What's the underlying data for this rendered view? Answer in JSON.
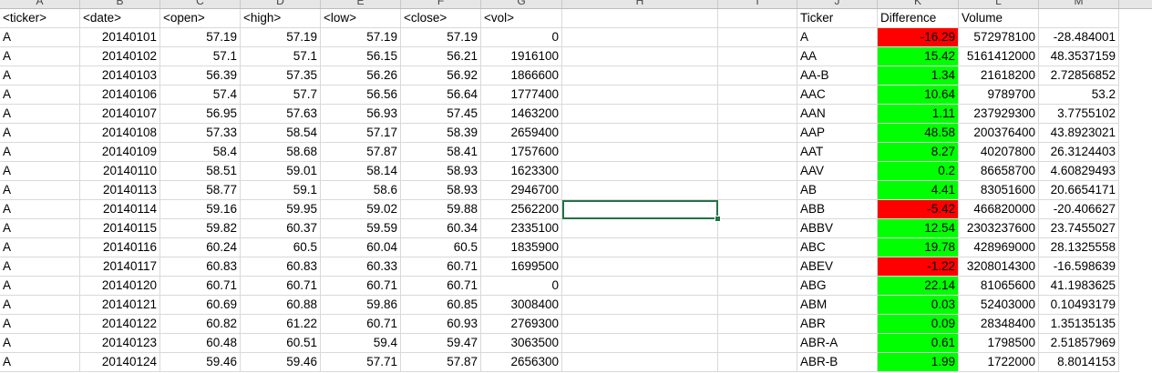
{
  "column_letters": [
    "A",
    "B",
    "C",
    "D",
    "E",
    "F",
    "G",
    "H",
    "I",
    "J",
    "K",
    "L",
    "M"
  ],
  "headers": {
    "A": "<ticker>",
    "B": "<date>",
    "C": "<open>",
    "D": "<high>",
    "E": "<low>",
    "F": "<close>",
    "G": "<vol>",
    "J": "Ticker",
    "K": "Difference",
    "L": "Volume"
  },
  "left_rows": [
    [
      "A",
      "20140101",
      "57.19",
      "57.19",
      "57.19",
      "57.19",
      "0"
    ],
    [
      "A",
      "20140102",
      "57.1",
      "57.1",
      "56.15",
      "56.21",
      "1916100"
    ],
    [
      "A",
      "20140103",
      "56.39",
      "57.35",
      "56.26",
      "56.92",
      "1866600"
    ],
    [
      "A",
      "20140106",
      "57.4",
      "57.7",
      "56.56",
      "56.64",
      "1777400"
    ],
    [
      "A",
      "20140107",
      "56.95",
      "57.63",
      "56.93",
      "57.45",
      "1463200"
    ],
    [
      "A",
      "20140108",
      "57.33",
      "58.54",
      "57.17",
      "58.39",
      "2659400"
    ],
    [
      "A",
      "20140109",
      "58.4",
      "58.68",
      "57.87",
      "58.41",
      "1757600"
    ],
    [
      "A",
      "20140110",
      "58.51",
      "59.01",
      "58.14",
      "58.93",
      "1623300"
    ],
    [
      "A",
      "20140113",
      "58.77",
      "59.1",
      "58.6",
      "58.93",
      "2946700"
    ],
    [
      "A",
      "20140114",
      "59.16",
      "59.95",
      "59.02",
      "59.88",
      "2562200"
    ],
    [
      "A",
      "20140115",
      "59.82",
      "60.37",
      "59.59",
      "60.34",
      "2335100"
    ],
    [
      "A",
      "20140116",
      "60.24",
      "60.5",
      "60.04",
      "60.5",
      "1835900"
    ],
    [
      "A",
      "20140117",
      "60.83",
      "60.83",
      "60.33",
      "60.71",
      "1699500"
    ],
    [
      "A",
      "20140120",
      "60.71",
      "60.71",
      "60.71",
      "60.71",
      "0"
    ],
    [
      "A",
      "20140121",
      "60.69",
      "60.88",
      "59.86",
      "60.85",
      "3008400"
    ],
    [
      "A",
      "20140122",
      "60.82",
      "61.22",
      "60.71",
      "60.93",
      "2769300"
    ],
    [
      "A",
      "20140123",
      "60.48",
      "60.51",
      "59.4",
      "59.47",
      "3063500"
    ],
    [
      "A",
      "20140124",
      "59.46",
      "59.46",
      "57.71",
      "57.87",
      "2656300"
    ]
  ],
  "right_rows": [
    {
      "ticker": "A",
      "difference": "-16.29",
      "volume": "572978100",
      "pct": "-28.484001",
      "status": "neg"
    },
    {
      "ticker": "AA",
      "difference": "15.42",
      "volume": "5161412000",
      "pct": "48.3537159",
      "status": "pos"
    },
    {
      "ticker": "AA-B",
      "difference": "1.34",
      "volume": "21618200",
      "pct": "2.72856852",
      "status": "pos"
    },
    {
      "ticker": "AAC",
      "difference": "10.64",
      "volume": "9789700",
      "pct": "53.2",
      "status": "pos"
    },
    {
      "ticker": "AAN",
      "difference": "1.11",
      "volume": "237929300",
      "pct": "3.7755102",
      "status": "pos"
    },
    {
      "ticker": "AAP",
      "difference": "48.58",
      "volume": "200376400",
      "pct": "43.8923021",
      "status": "pos"
    },
    {
      "ticker": "AAT",
      "difference": "8.27",
      "volume": "40207800",
      "pct": "26.3124403",
      "status": "pos"
    },
    {
      "ticker": "AAV",
      "difference": "0.2",
      "volume": "86658700",
      "pct": "4.60829493",
      "status": "pos"
    },
    {
      "ticker": "AB",
      "difference": "4.41",
      "volume": "83051600",
      "pct": "20.6654171",
      "status": "pos"
    },
    {
      "ticker": "ABB",
      "difference": "-5.42",
      "volume": "466820000",
      "pct": "-20.406627",
      "status": "neg"
    },
    {
      "ticker": "ABBV",
      "difference": "12.54",
      "volume": "2303237600",
      "pct": "23.7455027",
      "status": "pos"
    },
    {
      "ticker": "ABC",
      "difference": "19.78",
      "volume": "428969000",
      "pct": "28.1325558",
      "status": "pos"
    },
    {
      "ticker": "ABEV",
      "difference": "-1.22",
      "volume": "3208014300",
      "pct": "-16.598639",
      "status": "neg"
    },
    {
      "ticker": "ABG",
      "difference": "22.14",
      "volume": "81065600",
      "pct": "41.1983625",
      "status": "pos"
    },
    {
      "ticker": "ABM",
      "difference": "0.03",
      "volume": "52403000",
      "pct": "0.10493179",
      "status": "pos"
    },
    {
      "ticker": "ABR",
      "difference": "0.09",
      "volume": "28348400",
      "pct": "1.35135135",
      "status": "pos"
    },
    {
      "ticker": "ABR-A",
      "difference": "0.61",
      "volume": "1798500",
      "pct": "2.51857969",
      "status": "pos"
    },
    {
      "ticker": "ABR-B",
      "difference": "1.99",
      "volume": "1722000",
      "pct": "8.8014153",
      "status": "pos"
    }
  ],
  "colors": {
    "positive_fill": "#00ff00",
    "negative_fill": "#ff0000",
    "selection": "#217346"
  }
}
